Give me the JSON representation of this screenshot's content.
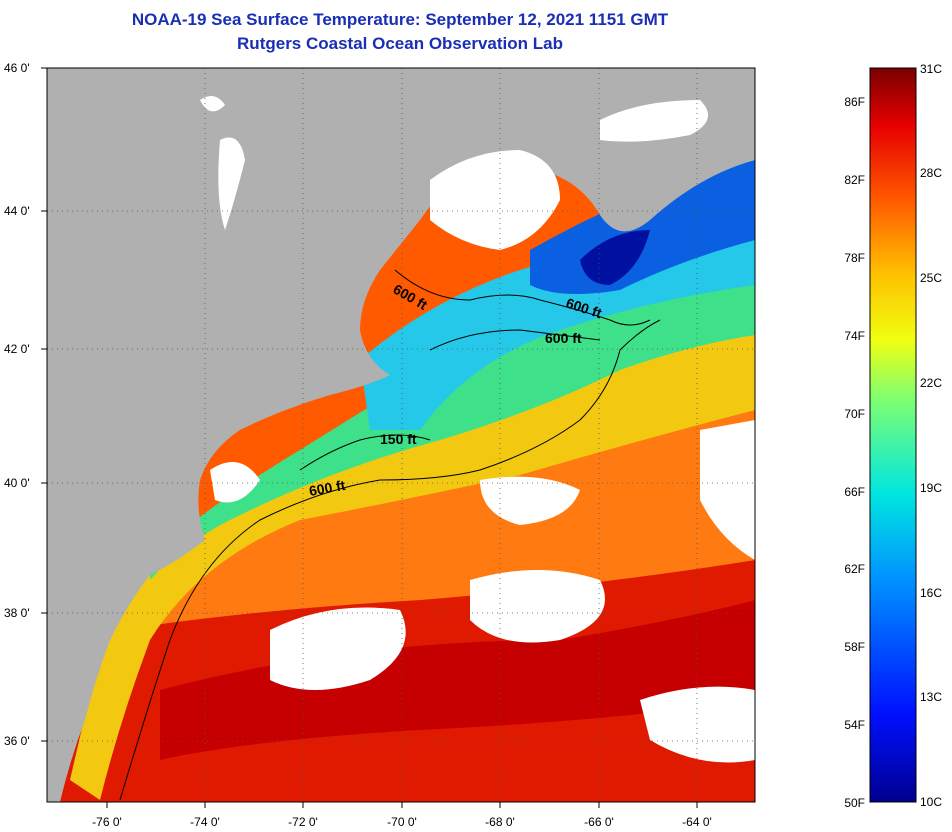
{
  "header": {
    "title": "NOAA-19 Sea Surface Temperature:  September 12, 2021 1151 GMT",
    "subtitle": "Rutgers Coastal Ocean Observation Lab"
  },
  "map": {
    "lat_labels": [
      "46 0'",
      "44 0'",
      "42 0'",
      "40 0'",
      "38 0'",
      "36 0'"
    ],
    "lon_labels": [
      "-76 0'",
      "-74 0'",
      "-72 0'",
      "-70 0'",
      "-68 0'",
      "-66 0'",
      "-64 0'"
    ],
    "contour_labels": [
      "600 ft",
      "600 ft",
      "600 ft",
      "150 ft",
      "600 ft"
    ]
  },
  "colorbar": {
    "fahrenheit_labels": [
      "86F",
      "82F",
      "78F",
      "74F",
      "70F",
      "66F",
      "62F",
      "58F",
      "54F",
      "50F"
    ],
    "celsius_labels": [
      "31C",
      "28C",
      "25C",
      "22C",
      "19C",
      "16C",
      "13C",
      "10C"
    ]
  },
  "colors": {
    "land": "#b0b0b0",
    "cloud": "#ffffff",
    "title": "#1a2fb4"
  }
}
